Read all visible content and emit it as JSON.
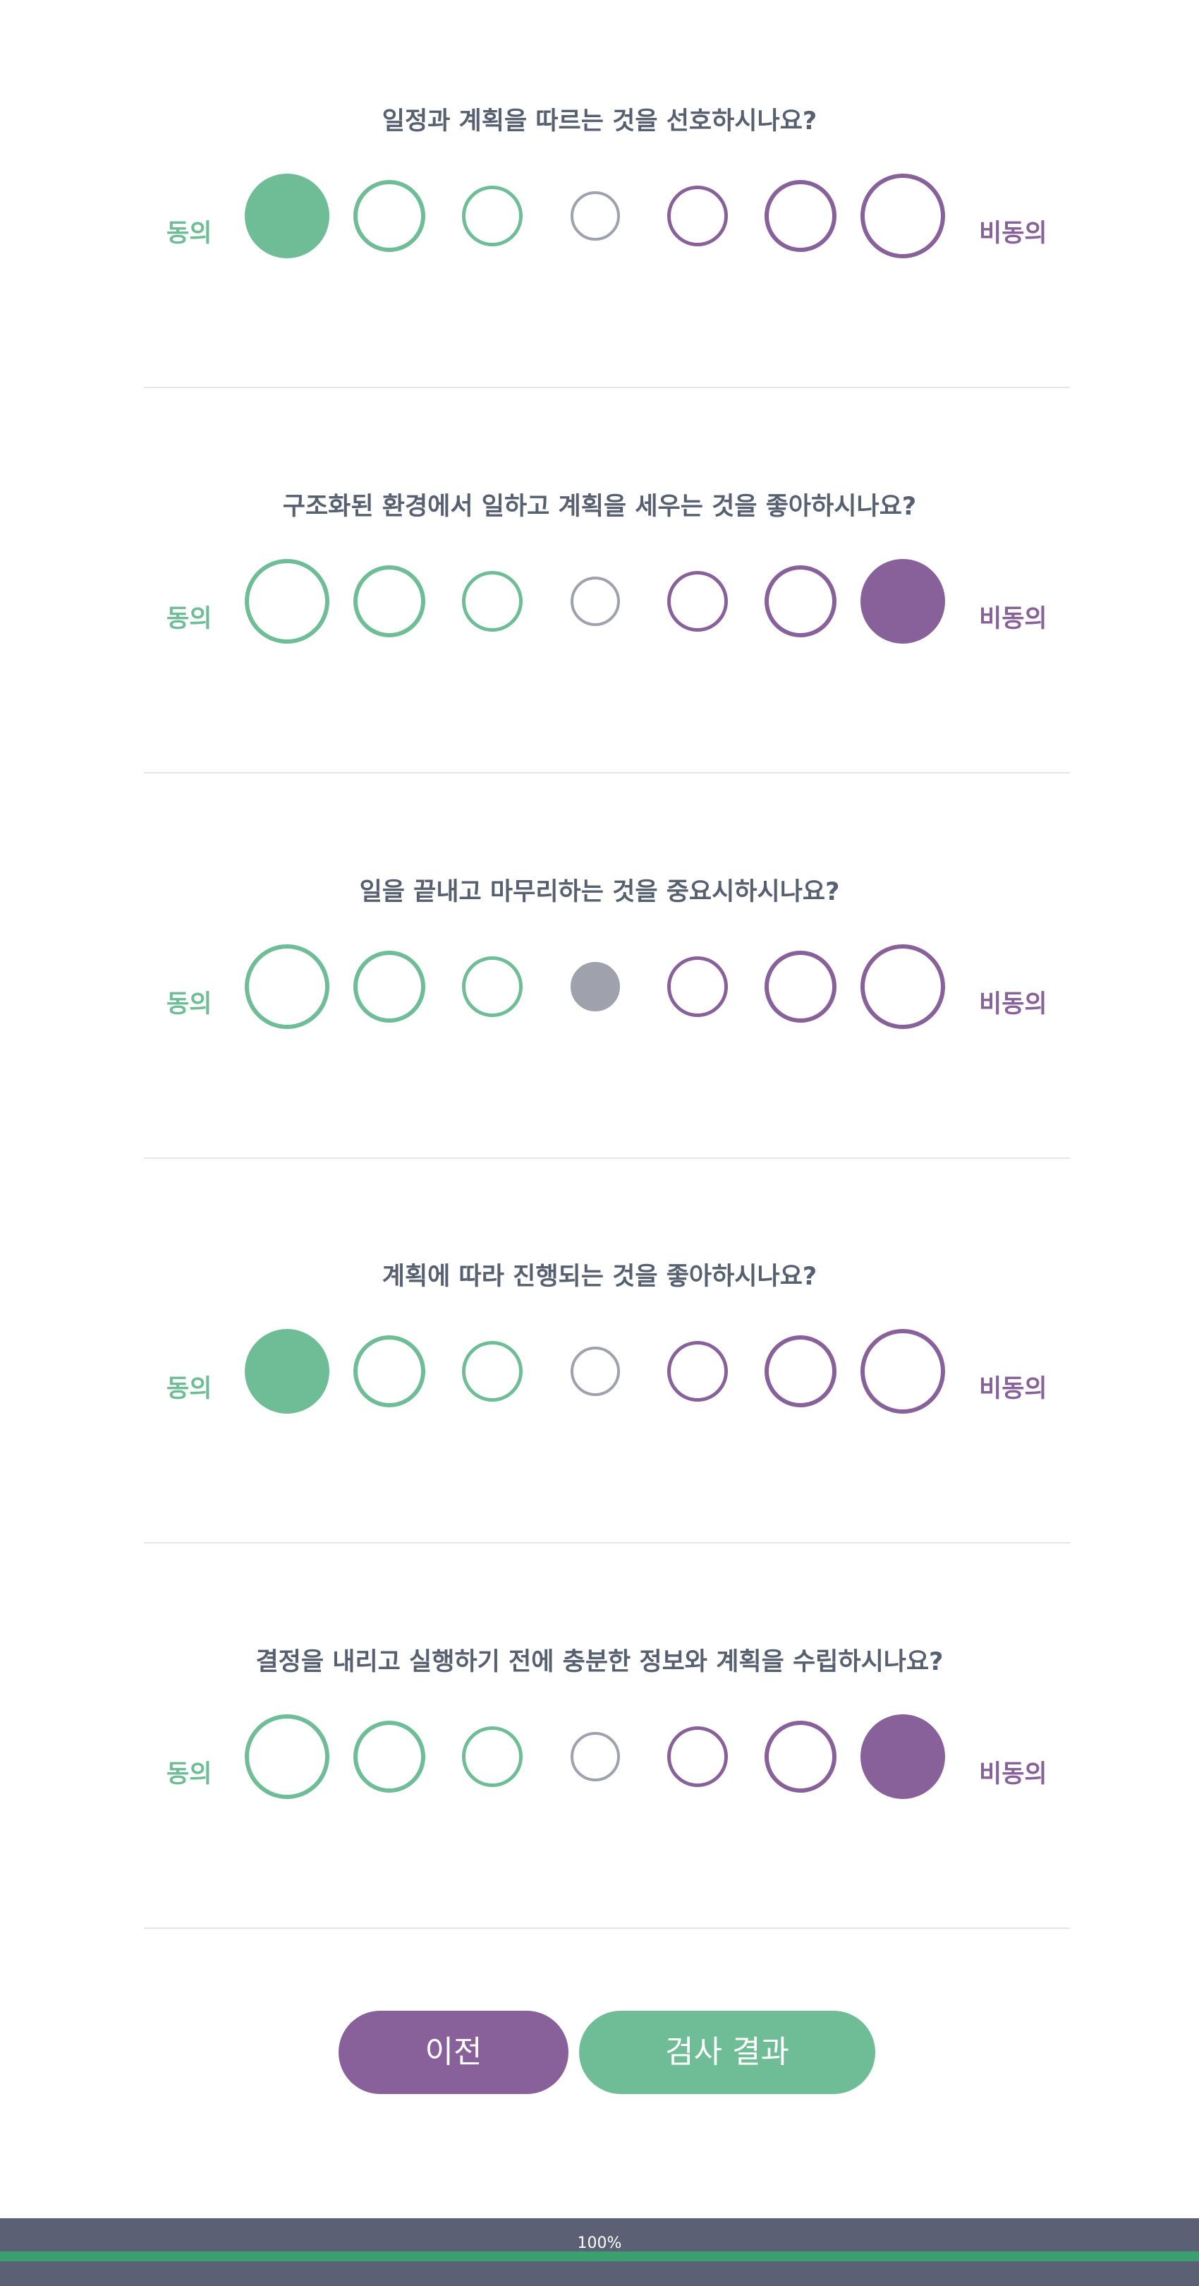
{
  "scale": {
    "agree_label": "동의",
    "disagree_label": "비동의"
  },
  "colors": {
    "agree": "#6ebd97",
    "neutral": "#9fa2ac",
    "disagree": "#88619a"
  },
  "questions": [
    {
      "text": "일정과 계획을 따르는 것을 선호하시나요?",
      "selected": 0
    },
    {
      "text": "구조화된 환경에서 일하고 계획을 세우는 것을 좋아하시나요?",
      "selected": 6
    },
    {
      "text": "일을 끝내고 마무리하는 것을 중요시하시나요?",
      "selected": 3
    },
    {
      "text": "계획에 따라 진행되는 것을 좋아하시나요?",
      "selected": 0
    },
    {
      "text": "결정을 내리고 실행하기 전에 충분한 정보와 계획을 수립하시나요?",
      "selected": 6
    }
  ],
  "buttons": {
    "prev_label": "이전",
    "result_label": "검사 결과"
  },
  "progress": {
    "text": "100%",
    "value": 1.0
  }
}
